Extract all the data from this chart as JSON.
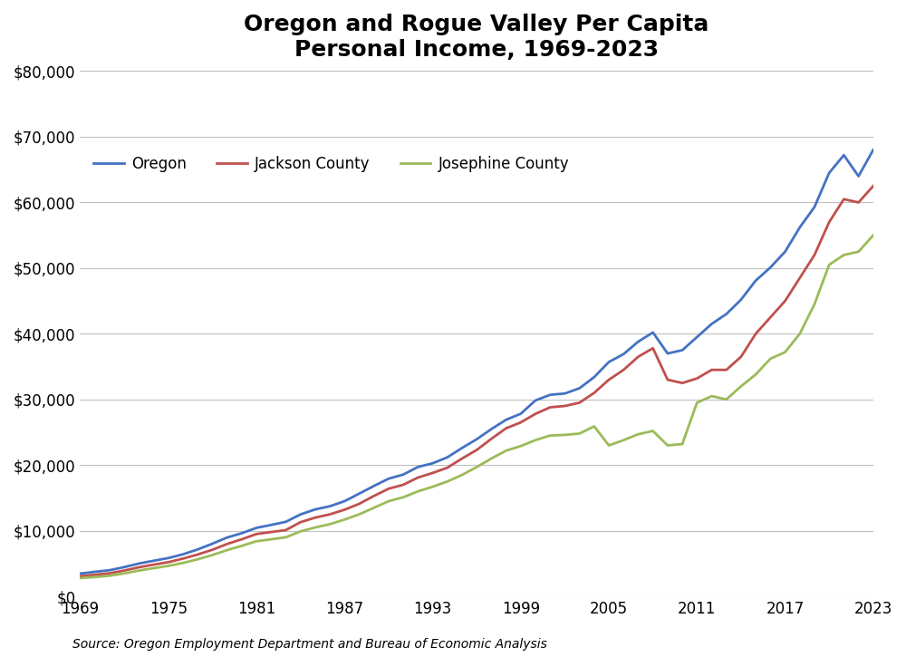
{
  "title": "Oregon and Rogue Valley Per Capita\nPersonal Income, 1969-2023",
  "source": "Source: Oregon Employment Department and Bureau of Economic Analysis",
  "years": [
    1969,
    1970,
    1971,
    1972,
    1973,
    1974,
    1975,
    1976,
    1977,
    1978,
    1979,
    1980,
    1981,
    1982,
    1983,
    1984,
    1985,
    1986,
    1987,
    1988,
    1989,
    1990,
    1991,
    1992,
    1993,
    1994,
    1995,
    1996,
    1997,
    1998,
    1999,
    2000,
    2001,
    2002,
    2003,
    2004,
    2005,
    2006,
    2007,
    2008,
    2009,
    2010,
    2011,
    2012,
    2013,
    2014,
    2015,
    2016,
    2017,
    2018,
    2019,
    2020,
    2021,
    2022,
    2023
  ],
  "oregon": [
    3469,
    3747,
    3990,
    4462,
    5009,
    5430,
    5842,
    6415,
    7148,
    8028,
    8967,
    9620,
    10439,
    10885,
    11359,
    12484,
    13248,
    13731,
    14501,
    15651,
    16818,
    17930,
    18557,
    19713,
    20273,
    21180,
    22601,
    23938,
    25485,
    26900,
    27820,
    29843,
    30700,
    30900,
    31700,
    33400,
    35700,
    36900,
    38800,
    40200,
    37000,
    37500,
    39500,
    41500,
    43000,
    45200,
    48100,
    50100,
    52500,
    56200,
    59300,
    64500,
    67200,
    64000,
    68000
  ],
  "jackson": [
    3062,
    3300,
    3520,
    3940,
    4440,
    4840,
    5210,
    5760,
    6380,
    7100,
    7980,
    8700,
    9500,
    9800,
    10100,
    11300,
    12000,
    12500,
    13200,
    14100,
    15300,
    16400,
    17000,
    18100,
    18800,
    19600,
    21000,
    22300,
    24000,
    25600,
    26500,
    27800,
    28800,
    29000,
    29500,
    31000,
    33000,
    34500,
    36500,
    37800,
    33000,
    32500,
    33200,
    34500,
    34500,
    36500,
    40000,
    42500,
    45000,
    48500,
    52000,
    57000,
    60500,
    60000,
    62500
  ],
  "josephine": [
    2800,
    2950,
    3150,
    3500,
    3940,
    4300,
    4650,
    5100,
    5650,
    6300,
    7050,
    7700,
    8400,
    8700,
    9000,
    9900,
    10500,
    11000,
    11700,
    12500,
    13500,
    14500,
    15100,
    16000,
    16700,
    17500,
    18500,
    19700,
    21000,
    22200,
    22900,
    23800,
    24500,
    24600,
    24800,
    25900,
    23000,
    23800,
    24700,
    25200,
    23000,
    23200,
    29500,
    30500,
    30000,
    32000,
    33800,
    36200,
    37200,
    40000,
    44500,
    50500,
    52000,
    52500,
    55000
  ],
  "oregon_color": "#4472C4",
  "jackson_color": "#C0504D",
  "josephine_color": "#9BBB59",
  "background_color": "#FFFFFF",
  "ylim": [
    0,
    80000
  ],
  "ytick_step": 10000,
  "xtick_years": [
    1969,
    1975,
    1981,
    1987,
    1993,
    1999,
    2005,
    2011,
    2017,
    2023
  ],
  "line_width": 2.0,
  "grid_color": "#C0C0C0",
  "grid_alpha": 1.0,
  "title_fontsize": 18,
  "legend_fontsize": 12,
  "tick_fontsize": 12,
  "source_fontsize": 10
}
